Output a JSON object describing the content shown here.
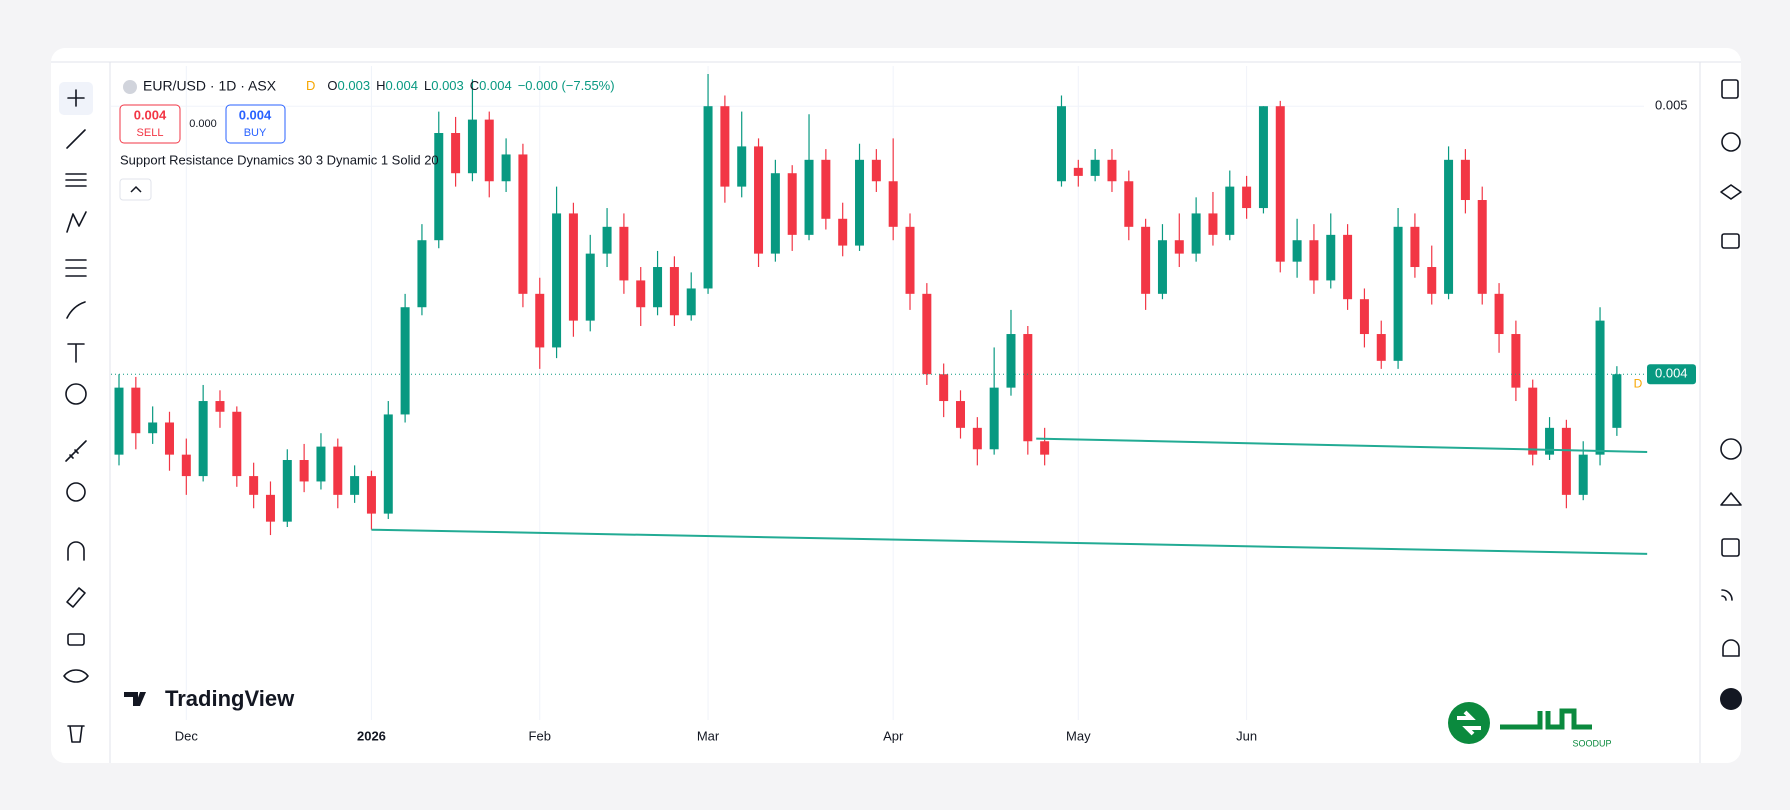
{
  "legend": {
    "symbol": "EUR/USD · 1D · ASX",
    "marker": "D",
    "ohlc": [
      {
        "k": "O",
        "v": "0.003"
      },
      {
        "k": "H",
        "v": "0.004"
      },
      {
        "k": "L",
        "v": "0.003"
      },
      {
        "k": "C",
        "v": "0.004"
      }
    ],
    "change": "−0.000 (−7.55%)"
  },
  "order": {
    "sell_price": "0.004",
    "sell": "SELL",
    "spread": "0.000",
    "buy_price": "0.004",
    "buy": "BUY"
  },
  "indicator": "Support Resistance Dynamics 30 3 Dynamic 1 Solid 20",
  "brand": "TradingView",
  "watermark": "SOODUP",
  "chart_data": {
    "type": "candlestick",
    "up_color": "#089981",
    "down_color": "#f23645",
    "categories": [
      null,
      null,
      null,
      null,
      "Dec",
      null,
      null,
      null,
      null,
      null,
      null,
      null,
      null,
      null,
      null,
      "2026",
      null,
      null,
      null,
      null,
      null,
      null,
      null,
      null,
      null,
      "Feb",
      null,
      null,
      null,
      null,
      null,
      null,
      null,
      null,
      null,
      "Mar",
      null,
      null,
      null,
      null,
      null,
      null,
      null,
      null,
      null,
      null,
      "Apr",
      null,
      null,
      null,
      null,
      null,
      null,
      null,
      null,
      null,
      null,
      "May",
      null,
      null,
      null,
      null,
      null,
      null,
      null,
      null,
      null,
      "Jun",
      null,
      null,
      null,
      null,
      null,
      null,
      null,
      null,
      null,
      null,
      null,
      null,
      null,
      null,
      null,
      null,
      null,
      null,
      null,
      null,
      null,
      null
    ],
    "ohlc": [
      [
        0.0037,
        0.004,
        0.00366,
        0.00395
      ],
      [
        0.00395,
        0.00399,
        0.00372,
        0.00378
      ],
      [
        0.00378,
        0.00388,
        0.00374,
        0.00382
      ],
      [
        0.00382,
        0.00386,
        0.00364,
        0.0037
      ],
      [
        0.0037,
        0.00376,
        0.00355,
        0.00362
      ],
      [
        0.00362,
        0.00396,
        0.0036,
        0.0039
      ],
      [
        0.0039,
        0.00394,
        0.0038,
        0.00386
      ],
      [
        0.00386,
        0.00388,
        0.00358,
        0.00362
      ],
      [
        0.00362,
        0.00367,
        0.0035,
        0.00355
      ],
      [
        0.00355,
        0.0036,
        0.0034,
        0.00345
      ],
      [
        0.00345,
        0.00372,
        0.00343,
        0.00368
      ],
      [
        0.00368,
        0.00374,
        0.00356,
        0.0036
      ],
      [
        0.0036,
        0.00378,
        0.00357,
        0.00373
      ],
      [
        0.00373,
        0.00376,
        0.0035,
        0.00355
      ],
      [
        0.00355,
        0.00366,
        0.00352,
        0.00362
      ],
      [
        0.00362,
        0.00364,
        0.00342,
        0.00348
      ],
      [
        0.00348,
        0.0039,
        0.00346,
        0.00385
      ],
      [
        0.00385,
        0.0043,
        0.00382,
        0.00425
      ],
      [
        0.00425,
        0.00456,
        0.00422,
        0.0045
      ],
      [
        0.0045,
        0.00498,
        0.00447,
        0.0049
      ],
      [
        0.0049,
        0.00496,
        0.0047,
        0.00475
      ],
      [
        0.00475,
        0.0051,
        0.00472,
        0.00495
      ],
      [
        0.00495,
        0.00498,
        0.00466,
        0.00472
      ],
      [
        0.00472,
        0.00488,
        0.00468,
        0.00482
      ],
      [
        0.00482,
        0.00486,
        0.00425,
        0.0043
      ],
      [
        0.0043,
        0.00436,
        0.00402,
        0.0041
      ],
      [
        0.0041,
        0.0047,
        0.00406,
        0.0046
      ],
      [
        0.0046,
        0.00464,
        0.00414,
        0.0042
      ],
      [
        0.0042,
        0.00452,
        0.00416,
        0.00445
      ],
      [
        0.00445,
        0.00462,
        0.0044,
        0.00455
      ],
      [
        0.00455,
        0.0046,
        0.0043,
        0.00435
      ],
      [
        0.00435,
        0.0044,
        0.00418,
        0.00425
      ],
      [
        0.00425,
        0.00446,
        0.00422,
        0.0044
      ],
      [
        0.0044,
        0.00444,
        0.00418,
        0.00422
      ],
      [
        0.00422,
        0.00438,
        0.0042,
        0.00432
      ],
      [
        0.00432,
        0.00512,
        0.0043,
        0.005
      ],
      [
        0.005,
        0.00504,
        0.00464,
        0.0047
      ],
      [
        0.0047,
        0.00498,
        0.00466,
        0.00485
      ],
      [
        0.00485,
        0.00488,
        0.0044,
        0.00445
      ],
      [
        0.00445,
        0.0048,
        0.00442,
        0.00475
      ],
      [
        0.00475,
        0.00478,
        0.00446,
        0.00452
      ],
      [
        0.00452,
        0.00497,
        0.0045,
        0.0048
      ],
      [
        0.0048,
        0.00484,
        0.00454,
        0.00458
      ],
      [
        0.00458,
        0.00464,
        0.00444,
        0.00448
      ],
      [
        0.00448,
        0.00486,
        0.00446,
        0.0048
      ],
      [
        0.0048,
        0.00484,
        0.00468,
        0.00472
      ],
      [
        0.00472,
        0.00488,
        0.0045,
        0.00455
      ],
      [
        0.00455,
        0.0046,
        0.00424,
        0.0043
      ],
      [
        0.0043,
        0.00434,
        0.00396,
        0.004
      ],
      [
        0.004,
        0.00404,
        0.00384,
        0.0039
      ],
      [
        0.0039,
        0.00394,
        0.00376,
        0.0038
      ],
      [
        0.0038,
        0.00384,
        0.00366,
        0.00372
      ],
      [
        0.00372,
        0.0041,
        0.0037,
        0.00395
      ],
      [
        0.00395,
        0.00424,
        0.00392,
        0.00415
      ],
      [
        0.00415,
        0.00418,
        0.0037,
        0.00375
      ],
      [
        0.00375,
        0.0038,
        0.00366,
        0.0037
      ],
      [
        0.00472,
        0.00504,
        0.0047,
        0.005
      ],
      [
        0.00477,
        0.0048,
        0.0047,
        0.00474
      ],
      [
        0.00474,
        0.00484,
        0.00472,
        0.0048
      ],
      [
        0.0048,
        0.00484,
        0.00468,
        0.00472
      ],
      [
        0.00472,
        0.00476,
        0.0045,
        0.00455
      ],
      [
        0.00455,
        0.00458,
        0.00424,
        0.0043
      ],
      [
        0.0043,
        0.00456,
        0.00428,
        0.0045
      ],
      [
        0.0045,
        0.0046,
        0.0044,
        0.00445
      ],
      [
        0.00445,
        0.00466,
        0.00442,
        0.0046
      ],
      [
        0.0046,
        0.00468,
        0.00448,
        0.00452
      ],
      [
        0.00452,
        0.00476,
        0.0045,
        0.0047
      ],
      [
        0.0047,
        0.00474,
        0.00458,
        0.00462
      ],
      [
        0.00462,
        0.005,
        0.0046,
        0.005
      ],
      [
        0.005,
        0.00502,
        0.00438,
        0.00442
      ],
      [
        0.00442,
        0.00458,
        0.00436,
        0.0045
      ],
      [
        0.0045,
        0.00456,
        0.0043,
        0.00435
      ],
      [
        0.00435,
        0.0046,
        0.00432,
        0.00452
      ],
      [
        0.00452,
        0.00456,
        0.00424,
        0.00428
      ],
      [
        0.00428,
        0.00432,
        0.0041,
        0.00415
      ],
      [
        0.00415,
        0.0042,
        0.00402,
        0.00405
      ],
      [
        0.00405,
        0.00462,
        0.00402,
        0.00455
      ],
      [
        0.00455,
        0.0046,
        0.00436,
        0.0044
      ],
      [
        0.0044,
        0.00448,
        0.00426,
        0.0043
      ],
      [
        0.0043,
        0.00485,
        0.00428,
        0.0048
      ],
      [
        0.0048,
        0.00484,
        0.0046,
        0.00465
      ],
      [
        0.00465,
        0.0047,
        0.00426,
        0.0043
      ],
      [
        0.0043,
        0.00434,
        0.00408,
        0.00415
      ],
      [
        0.00415,
        0.0042,
        0.0039,
        0.00395
      ],
      [
        0.00395,
        0.00398,
        0.00366,
        0.0037
      ],
      [
        0.0037,
        0.00384,
        0.00368,
        0.0038
      ],
      [
        0.0038,
        0.00383,
        0.0035,
        0.00355
      ],
      [
        0.00355,
        0.00375,
        0.00353,
        0.0037
      ],
      [
        0.0037,
        0.00425,
        0.00366,
        0.0042
      ],
      [
        0.0038,
        0.00403,
        0.00377,
        0.004
      ]
    ],
    "ylim": [
      0.00271,
      0.00515
    ],
    "yticks": [
      0.005
    ],
    "last_price": 0.004,
    "last_price_color": "#089981",
    "lines": [
      {
        "x": [
          15,
          90.8
        ],
        "values": [
          0.00342,
          0.00333
        ],
        "color": "#22ab94"
      },
      {
        "x": [
          54.5,
          90.8
        ],
        "values": [
          0.00376,
          0.00371
        ],
        "color": "#22ab94"
      }
    ]
  }
}
